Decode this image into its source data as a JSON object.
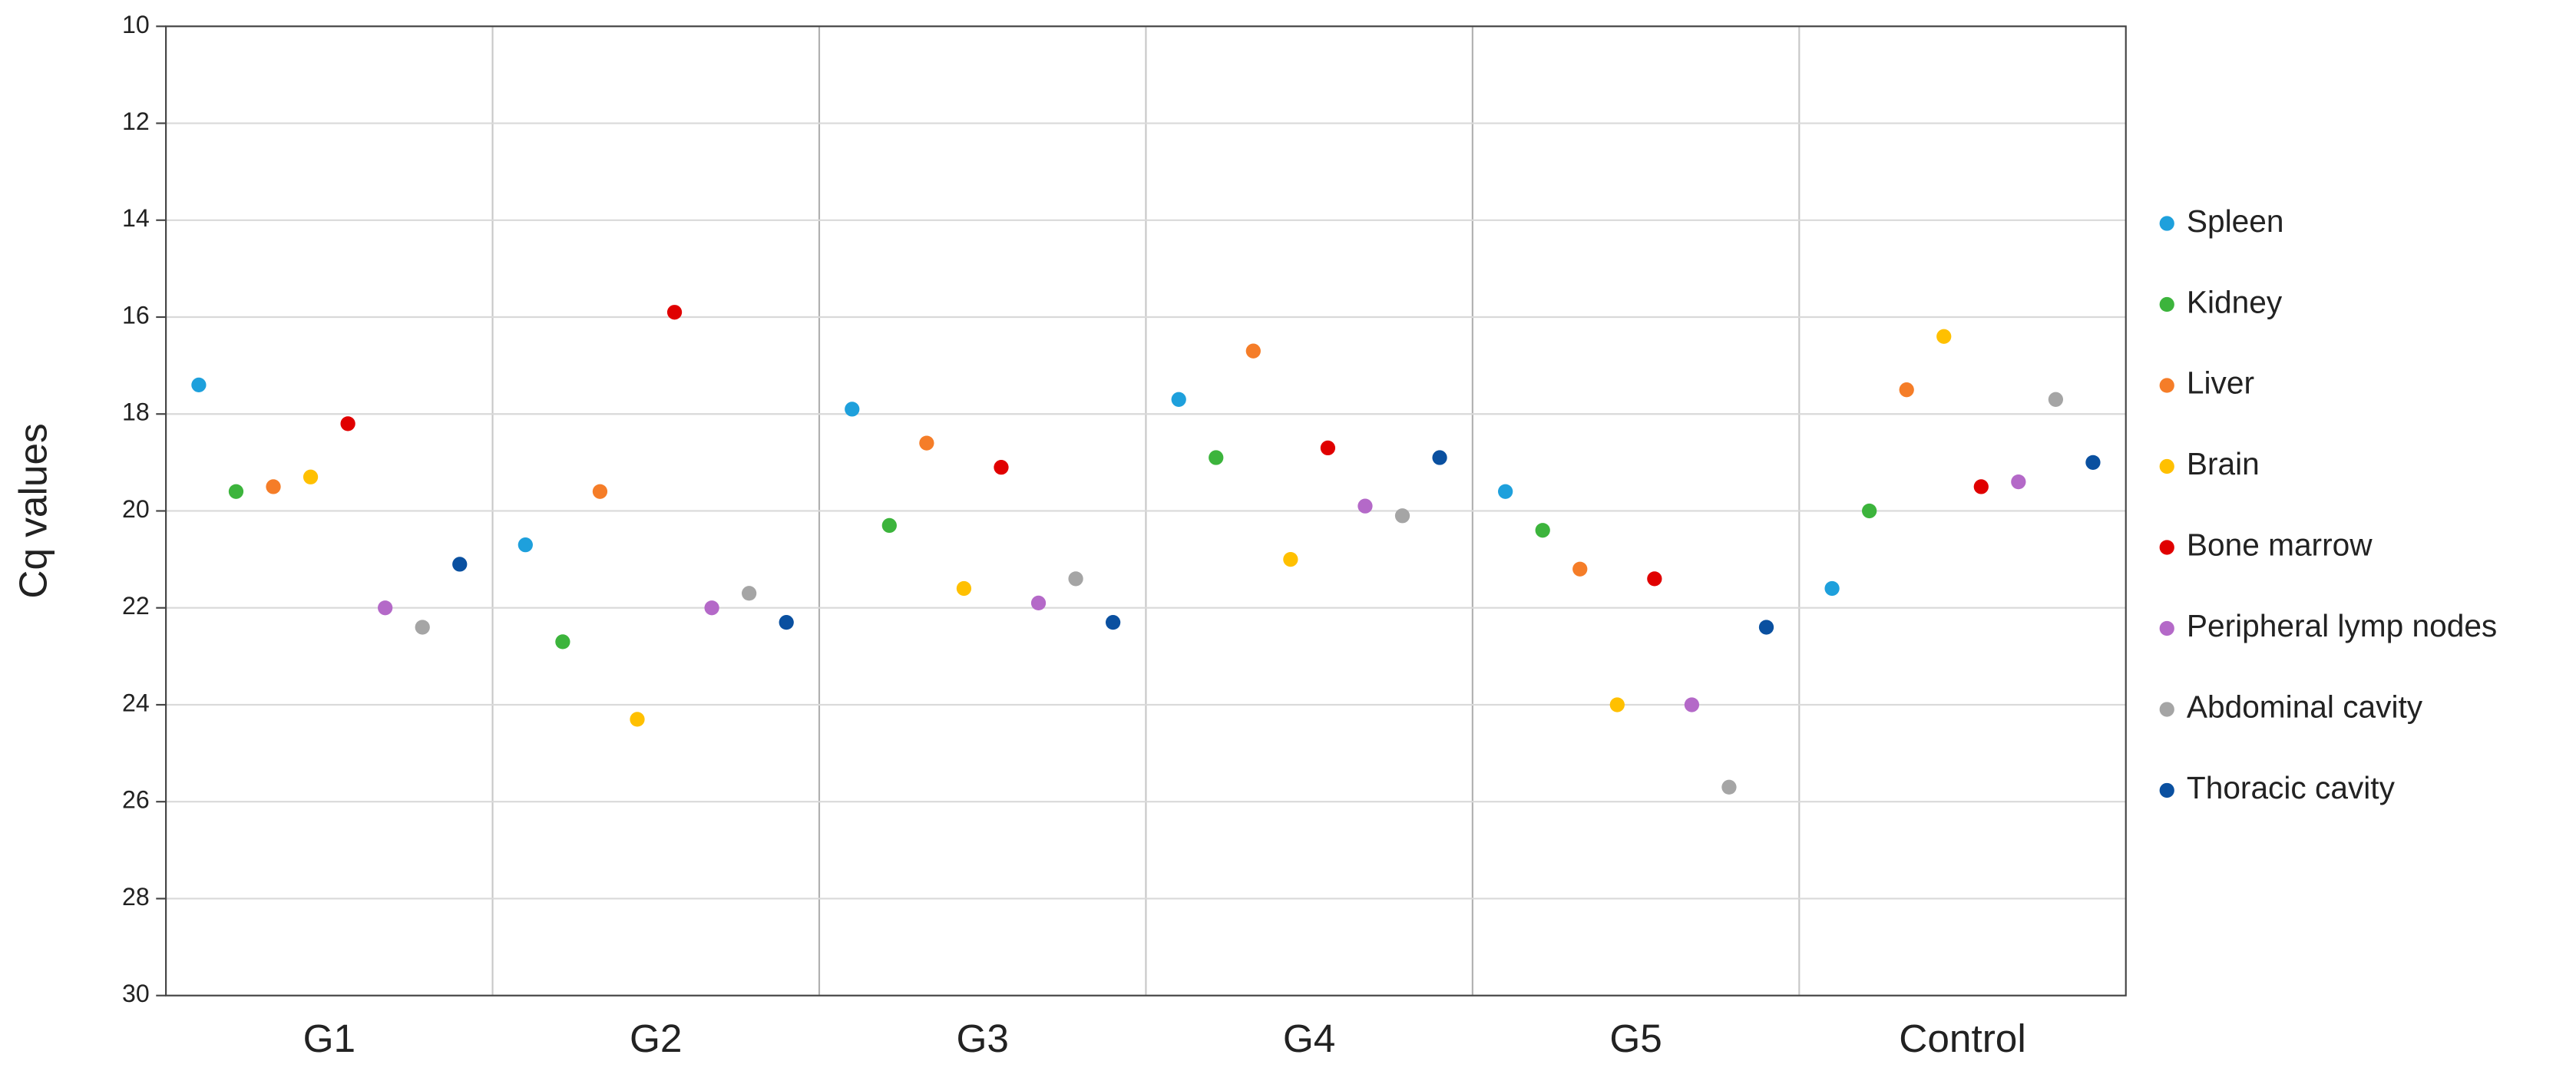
{
  "chart_data": {
    "type": "scatter",
    "y_label": "Cq values",
    "categories": [
      "G1",
      "G2",
      "G3",
      "G4",
      "G5",
      "Control"
    ],
    "series": [
      {
        "name": "Spleen",
        "color": "#1ea0dc",
        "values": [
          17.4,
          20.7,
          17.9,
          17.7,
          19.6,
          21.6
        ]
      },
      {
        "name": "Kidney",
        "color": "#3cb43c",
        "values": [
          19.6,
          22.7,
          20.3,
          18.9,
          20.4,
          20.0
        ]
      },
      {
        "name": "Liver",
        "color": "#f57d28",
        "values": [
          19.5,
          19.6,
          18.6,
          16.7,
          21.2,
          17.5
        ]
      },
      {
        "name": "Brain",
        "color": "#ffc000",
        "values": [
          19.3,
          24.3,
          21.6,
          21.0,
          24.0,
          16.4
        ]
      },
      {
        "name": "Bone marrow",
        "color": "#e00000",
        "values": [
          18.2,
          15.9,
          19.1,
          18.7,
          21.4,
          19.5
        ]
      },
      {
        "name": "Peripheral lymp nodes",
        "color": "#b469c8",
        "values": [
          22.0,
          22.0,
          21.9,
          19.9,
          24.0,
          19.4
        ]
      },
      {
        "name": "Abdominal cavity",
        "color": "#a5a5a5",
        "values": [
          22.4,
          21.7,
          21.4,
          20.1,
          25.7,
          17.7
        ]
      },
      {
        "name": "Thoracic cavity",
        "color": "#0a50a0",
        "values": [
          21.1,
          22.3,
          22.3,
          18.9,
          22.4,
          19.0
        ]
      }
    ],
    "ylim": [
      10,
      30
    ],
    "y_inverted": true,
    "yticks": [
      10,
      12,
      14,
      16,
      18,
      20,
      22,
      24,
      26,
      28,
      30
    ],
    "grid": true,
    "legend": "right"
  }
}
